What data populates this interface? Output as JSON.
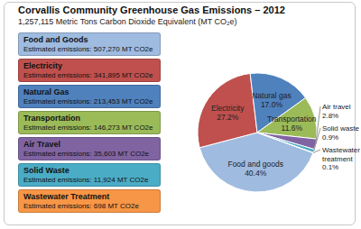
{
  "chart_data": {
    "type": "pie",
    "title": "Corvallis Community Greenhouse Gas Emissions – 2012",
    "subtitle": "1,257,115 Metric Tons Carbon Dioxide Equivalent (MT CO₂e)",
    "categories": [
      "Food and Goods",
      "Electricity",
      "Natural Gas",
      "Transportation",
      "Air Travel",
      "Solid Waste",
      "Wastewater Treatment"
    ],
    "values": [
      507270,
      341895,
      213453,
      146273,
      35603,
      11924,
      698
    ],
    "value_caption": "Estimated emissions:",
    "value_labels": [
      "507,270 MT CO2e",
      "341,895 MT CO2e",
      "213,453 MT CO2e",
      "146,273 MT CO2e",
      "35,603 MT CO2e",
      "11,924 MT CO2e",
      "698 MT CO2e"
    ],
    "slice_labels": [
      "Food and goods",
      "Electricity",
      "Natural gas",
      "Transportation",
      "Air travel",
      "Solid waste",
      "Wastewater treatment"
    ],
    "percents": [
      40.4,
      27.2,
      17.0,
      11.6,
      2.8,
      0.9,
      0.1
    ],
    "percent_labels": [
      "40.4%",
      "27.2%",
      "17.0%",
      "11.6%",
      "2.8%",
      "0.9%",
      "0.1%"
    ],
    "colors": [
      "#9fbbe0",
      "#c0504d",
      "#4f81bd",
      "#9bbb59",
      "#8064a2",
      "#4bacc6",
      "#f79646"
    ],
    "data_labels": true
  }
}
